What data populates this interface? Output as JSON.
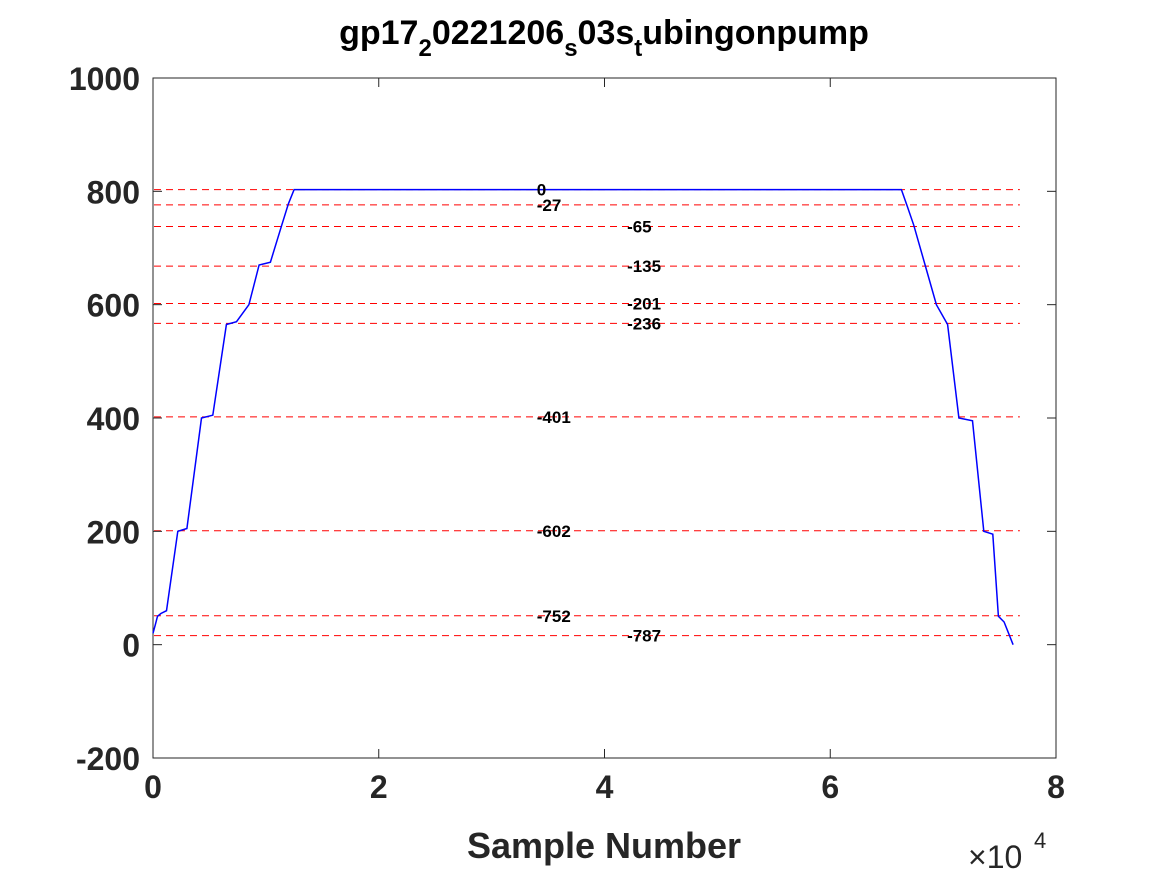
{
  "chart_data": {
    "type": "line",
    "title": "gp17",
    "title_parts": [
      {
        "text": "gp17",
        "sub": false
      },
      {
        "text": "2",
        "sub": true
      },
      {
        "text": "0221206",
        "sub": false
      },
      {
        "text": "s",
        "sub": true
      },
      {
        "text": "03s",
        "sub": false
      },
      {
        "text": "t",
        "sub": true
      },
      {
        "text": "ubingonpump",
        "sub": false
      }
    ],
    "xlabel": "Sample Number",
    "ylabel": "",
    "x_exponent_label": "×10",
    "x_exponent_power": "4",
    "xlim": [
      0,
      80000
    ],
    "ylim": [
      -200,
      1000
    ],
    "xticks": [
      0,
      20000,
      40000,
      60000,
      80000
    ],
    "xtick_labels": [
      "0",
      "2",
      "4",
      "6",
      "8"
    ],
    "yticks": [
      -200,
      0,
      200,
      400,
      600,
      800,
      1000
    ],
    "ytick_labels": [
      "-200",
      "0",
      "200",
      "400",
      "600",
      "800",
      "1000"
    ],
    "grid": false,
    "series": [
      {
        "color": "#0000ff",
        "x": [
          0,
          200,
          400,
          700,
          1200,
          2200,
          3000,
          4300,
          5300,
          6500,
          7400,
          8500,
          9400,
          10400,
          11400,
          12000,
          12500,
          66300,
          66800,
          67400,
          68400,
          69400,
          70400,
          71400,
          72600,
          73600,
          74400,
          74900,
          75400,
          75800,
          76200
        ],
        "y": [
          20,
          35,
          50,
          55,
          60,
          200,
          205,
          400,
          405,
          565,
          570,
          600,
          670,
          675,
          740,
          778,
          803,
          803,
          775,
          740,
          670,
          600,
          565,
          400,
          395,
          200,
          195,
          50,
          40,
          20,
          0
        ]
      }
    ],
    "reference_lines": {
      "color": "#ff0000",
      "style": "dashed",
      "lines": [
        {
          "y": 803,
          "label": "0",
          "label_x": 34000
        },
        {
          "y": 776,
          "label": "-27",
          "label_x": 34000
        },
        {
          "y": 738,
          "label": "-65",
          "label_x": 42000
        },
        {
          "y": 668,
          "label": "-135",
          "label_x": 42000
        },
        {
          "y": 602,
          "label": "-201",
          "label_x": 42000
        },
        {
          "y": 567,
          "label": "-236",
          "label_x": 42000
        },
        {
          "y": 402,
          "label": "-401",
          "label_x": 34000
        },
        {
          "y": 201,
          "label": "-602",
          "label_x": 34000
        },
        {
          "y": 51,
          "label": "-752",
          "label_x": 34000
        },
        {
          "y": 16,
          "label": "-787",
          "label_x": 42000
        }
      ]
    }
  }
}
